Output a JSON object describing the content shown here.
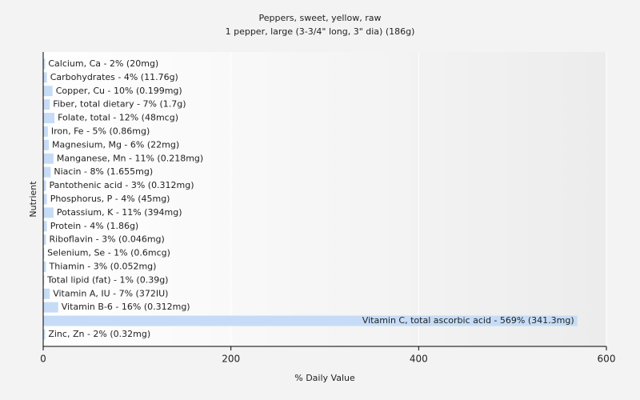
{
  "chart_data": {
    "type": "hbar",
    "title": "Peppers, sweet, yellow, raw",
    "subtitle": "1 pepper, large (3-3/4\" long, 3\" dia) (186g)",
    "x_label": "% Daily Value",
    "y_label": "Nutrient",
    "values": [
      2,
      4,
      10,
      7,
      12,
      5,
      6,
      11,
      8,
      3,
      4,
      11,
      4,
      3,
      1,
      3,
      1,
      7,
      16,
      569,
      2
    ],
    "value_labels": [
      "Calcium, Ca - 2% (20mg)",
      "Carbohydrates - 4% (11.76g)",
      "Copper, Cu - 10% (0.199mg)",
      "Fiber, total dietary - 7% (1.7g)",
      "Folate, total - 12% (48mcg)",
      "Iron, Fe - 5% (0.86mg)",
      "Magnesium, Mg - 6% (22mg)",
      "Manganese, Mn - 11% (0.218mg)",
      "Niacin - 8% (1.655mg)",
      "Pantothenic acid - 3% (0.312mg)",
      "Phosphorus, P - 4% (45mg)",
      "Potassium, K - 11% (394mg)",
      "Protein - 4% (1.86g)",
      "Riboflavin - 3% (0.046mg)",
      "Selenium, Se - 1% (0.6mcg)",
      "Thiamin - 3% (0.052mg)",
      "Total lipid (fat) - 1% (0.39g)",
      "Vitamin A, IU - 7% (372IU)",
      "Vitamin B-6 - 16% (0.312mg)",
      "Vitamin C, total ascorbic acid - 569% (341.3mg)",
      "Zinc, Zn - 2% (0.32mg)"
    ],
    "color": "#c6dcf6",
    "xlim": [
      0,
      600
    ],
    "xticks": [
      0,
      200,
      400,
      600
    ],
    "grid": true
  }
}
